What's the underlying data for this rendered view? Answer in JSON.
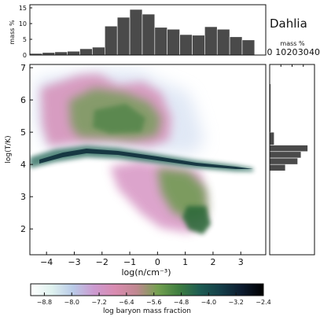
{
  "figure": {
    "title": "Dahlia"
  },
  "chart_data": [
    {
      "id": "main_phase_diagram",
      "type": "heatmap",
      "xlabel": "log(n/cm⁻³)",
      "ylabel": "log(T/K)",
      "xlim": [
        -4.6,
        3.9
      ],
      "ylim": [
        1.2,
        7.1
      ],
      "x_ticks": [
        "−4",
        "−3",
        "−2",
        "−1",
        "0",
        "1",
        "2",
        "3"
      ],
      "x_tick_values": [
        -4,
        -3,
        -2,
        -1,
        0,
        1,
        2,
        3
      ],
      "y_ticks": [
        "2",
        "3",
        "4",
        "5",
        "6",
        "7"
      ],
      "y_tick_values": [
        2,
        3,
        4,
        5,
        6,
        7
      ]
    },
    {
      "id": "top_histogram",
      "type": "bar",
      "ylabel": "mass %",
      "ylim": [
        0,
        16
      ],
      "y_ticks": [
        "0",
        "5",
        "10",
        "15"
      ],
      "y_tick_values": [
        0,
        5,
        10,
        15
      ],
      "bin_edges": [
        -4.6,
        -4.15,
        -3.7,
        -3.25,
        -2.8,
        -2.35,
        -1.9,
        -1.45,
        -1.0,
        -0.55,
        -0.1,
        0.35,
        0.8,
        1.25,
        1.7,
        2.15,
        2.6,
        3.05,
        3.5
      ],
      "values": [
        0.5,
        0.8,
        1.0,
        1.2,
        2.0,
        2.5,
        9.2,
        12.0,
        14.5,
        13.0,
        8.8,
        8.2,
        6.5,
        6.3,
        9.0,
        8.2,
        5.8,
        4.8
      ]
    },
    {
      "id": "right_histogram",
      "type": "bar",
      "orientation": "horizontal",
      "xlabel": "mass %",
      "xlim": [
        0,
        40
      ],
      "x_ticks": [
        "0",
        "10",
        "20",
        "30",
        "40"
      ],
      "x_tick_values": [
        0,
        10,
        20,
        30,
        40
      ],
      "bin_edges": [
        2.0,
        2.5,
        3.0,
        3.5,
        3.8,
        4.0,
        4.2,
        4.4,
        4.6,
        5.0,
        6.5
      ],
      "values": [
        0.5,
        0.5,
        0.5,
        0.5,
        14,
        25,
        28,
        34,
        4,
        1.0
      ]
    },
    {
      "id": "colorbar",
      "type": "heatmap",
      "label": "log baryon mass fraction",
      "range": [
        -9.2,
        -2.4
      ],
      "ticks": [
        "−8.8",
        "−8.0",
        "−7.2",
        "−6.4",
        "−5.6",
        "−4.8",
        "−4.0",
        "−3.2",
        "−2.4"
      ],
      "tick_values": [
        -8.8,
        -8.0,
        -7.2,
        -6.4,
        -5.6,
        -4.8,
        -4.0,
        -3.2,
        -2.4
      ],
      "colors": [
        "#ffffff",
        "#dff2ef",
        "#b9cbe8",
        "#cc9ad0",
        "#d98bb0",
        "#c08890",
        "#74a050",
        "#3f7e40",
        "#1d5b52",
        "#143d48",
        "#0c1a2e",
        "#000000"
      ]
    }
  ]
}
